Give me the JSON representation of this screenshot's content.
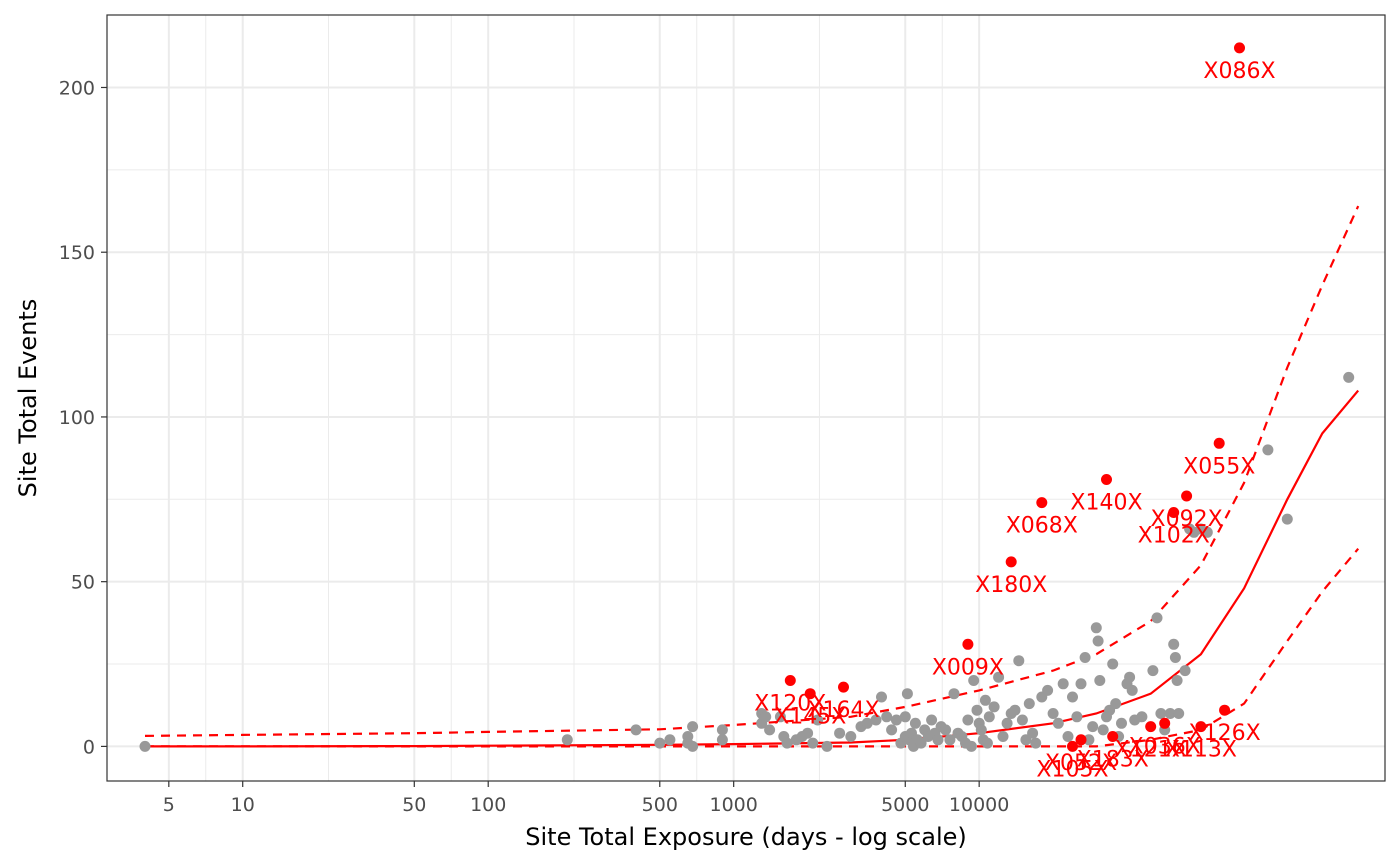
{
  "chart_data": {
    "type": "scatter",
    "title": "",
    "xlabel": "Site Total Exposure (days - log scale)",
    "ylabel": "Site Total Events",
    "x_scale": "log10",
    "xlim": [
      2.8,
      450000
    ],
    "ylim": [
      -10.5,
      222
    ],
    "x_ticks": [
      5,
      10,
      50,
      100,
      500,
      1000,
      5000,
      10000
    ],
    "x_tick_labels": [
      "5",
      "10",
      "50",
      "100",
      "500",
      "1000",
      "5000",
      "10000"
    ],
    "y_ticks": [
      0,
      50,
      100,
      150,
      200
    ],
    "y_tick_labels": [
      "0",
      "50",
      "100",
      "150",
      "200"
    ],
    "grid": true,
    "legend": "none",
    "colors": {
      "normal": "#999999",
      "flagged": "#ff0000",
      "fit": "#ff0000",
      "panel_border": "#333333",
      "grid": "#ebebeb"
    },
    "fit": {
      "exposure": [
        4,
        10,
        50,
        100,
        500,
        1000,
        3000,
        5000,
        10000,
        20000,
        30000,
        50000,
        80000,
        120000,
        180000,
        250000,
        350000
      ],
      "expected": [
        0,
        0,
        0.1,
        0.2,
        0.5,
        0.7,
        1.2,
        2,
        4,
        7,
        10,
        16,
        28,
        48,
        75,
        95,
        108
      ],
      "upper": [
        3.2,
        3.5,
        4,
        4.4,
        5.2,
        6.5,
        9,
        12,
        17,
        23,
        28,
        38,
        55,
        80,
        115,
        140,
        164
      ],
      "lower": [
        0,
        0,
        0,
        0,
        0,
        0,
        0,
        0,
        0,
        0,
        0,
        2,
        5,
        13,
        32,
        47,
        60
      ]
    },
    "series": [
      {
        "name": "",
        "color": "#999999",
        "points": [
          [
            4,
            0
          ],
          [
            210,
            2
          ],
          [
            400,
            5
          ],
          [
            500,
            1
          ],
          [
            550,
            2
          ],
          [
            650,
            3
          ],
          [
            650,
            1
          ],
          [
            680,
            0
          ],
          [
            680,
            6
          ],
          [
            900,
            5
          ],
          [
            900,
            2
          ],
          [
            1300,
            10
          ],
          [
            1300,
            7
          ],
          [
            1350,
            9
          ],
          [
            1400,
            5
          ],
          [
            1550,
            9
          ],
          [
            1600,
            3
          ],
          [
            1650,
            1
          ],
          [
            1800,
            2
          ],
          [
            1900,
            3
          ],
          [
            2000,
            4
          ],
          [
            2100,
            1
          ],
          [
            2200,
            8
          ],
          [
            2400,
            0
          ],
          [
            2700,
            4
          ],
          [
            3000,
            3
          ],
          [
            3300,
            6
          ],
          [
            3500,
            7
          ],
          [
            3800,
            8
          ],
          [
            4000,
            15
          ],
          [
            4200,
            9
          ],
          [
            4400,
            5
          ],
          [
            4600,
            8
          ],
          [
            4800,
            1
          ],
          [
            5000,
            3
          ],
          [
            5000,
            9
          ],
          [
            5100,
            16
          ],
          [
            5200,
            2
          ],
          [
            5300,
            4
          ],
          [
            5400,
            0
          ],
          [
            5500,
            7
          ],
          [
            5600,
            2
          ],
          [
            5800,
            1
          ],
          [
            6000,
            5
          ],
          [
            6200,
            3
          ],
          [
            6400,
            8
          ],
          [
            6600,
            4
          ],
          [
            6800,
            2
          ],
          [
            7000,
            6
          ],
          [
            7300,
            5
          ],
          [
            7600,
            2
          ],
          [
            7900,
            16
          ],
          [
            8200,
            4
          ],
          [
            8500,
            3
          ],
          [
            8800,
            1
          ],
          [
            9000,
            8
          ],
          [
            9300,
            0
          ],
          [
            9500,
            20
          ],
          [
            9800,
            11
          ],
          [
            10000,
            7
          ],
          [
            10200,
            5
          ],
          [
            10400,
            2
          ],
          [
            10600,
            14
          ],
          [
            10800,
            1
          ],
          [
            11000,
            9
          ],
          [
            11500,
            12
          ],
          [
            12000,
            21
          ],
          [
            12500,
            3
          ],
          [
            13000,
            7
          ],
          [
            13500,
            10
          ],
          [
            14000,
            11
          ],
          [
            14500,
            26
          ],
          [
            15000,
            8
          ],
          [
            15500,
            2
          ],
          [
            16000,
            13
          ],
          [
            16500,
            4
          ],
          [
            17000,
            1
          ],
          [
            18000,
            15
          ],
          [
            19000,
            17
          ],
          [
            20000,
            10
          ],
          [
            21000,
            7
          ],
          [
            22000,
            19
          ],
          [
            23000,
            3
          ],
          [
            24000,
            15
          ],
          [
            25000,
            9
          ],
          [
            26000,
            19
          ],
          [
            27000,
            27
          ],
          [
            28000,
            2
          ],
          [
            29000,
            6
          ],
          [
            30000,
            36
          ],
          [
            30500,
            32
          ],
          [
            31000,
            20
          ],
          [
            32000,
            5
          ],
          [
            33000,
            9
          ],
          [
            34000,
            11
          ],
          [
            35000,
            25
          ],
          [
            36000,
            13
          ],
          [
            37000,
            3
          ],
          [
            38000,
            7
          ],
          [
            40000,
            19
          ],
          [
            41000,
            21
          ],
          [
            42000,
            17
          ],
          [
            43000,
            8
          ],
          [
            46000,
            9
          ],
          [
            51000,
            23
          ],
          [
            53000,
            39
          ],
          [
            55000,
            10
          ],
          [
            57000,
            5
          ],
          [
            60000,
            10
          ],
          [
            62000,
            31
          ],
          [
            63000,
            27
          ],
          [
            64000,
            20
          ],
          [
            65000,
            10
          ],
          [
            69000,
            23
          ],
          [
            72000,
            66
          ],
          [
            75000,
            65
          ],
          [
            80000,
            66
          ],
          [
            85000,
            65
          ],
          [
            150000,
            90
          ],
          [
            180000,
            69
          ],
          [
            320000,
            112
          ]
        ]
      },
      {
        "name": "",
        "color": "#ff0000",
        "points": [
          [
            1700,
            20
          ],
          [
            2050,
            16
          ],
          [
            2800,
            18
          ],
          [
            9000,
            31
          ],
          [
            13500,
            56
          ],
          [
            18000,
            74
          ],
          [
            33000,
            81
          ],
          [
            62000,
            71
          ],
          [
            70000,
            76
          ],
          [
            95000,
            92
          ],
          [
            115000,
            212
          ],
          [
            24000,
            0
          ],
          [
            26000,
            2
          ],
          [
            35000,
            3
          ],
          [
            50000,
            6
          ],
          [
            57000,
            7
          ],
          [
            80000,
            6
          ],
          [
            100000,
            11
          ]
        ]
      }
    ],
    "labels": [
      {
        "text": "X086X",
        "x": 115000,
        "y": 212
      },
      {
        "text": "X055X",
        "x": 95000,
        "y": 92
      },
      {
        "text": "X140X",
        "x": 33000,
        "y": 81
      },
      {
        "text": "X092X",
        "x": 70000,
        "y": 76
      },
      {
        "text": "X068X",
        "x": 18000,
        "y": 74
      },
      {
        "text": "X102X",
        "x": 62000,
        "y": 71
      },
      {
        "text": "X180X",
        "x": 13500,
        "y": 56
      },
      {
        "text": "X009X",
        "x": 9000,
        "y": 31
      },
      {
        "text": "X145X",
        "x": 2050,
        "y": 16
      },
      {
        "text": "X164X",
        "x": 2800,
        "y": 18
      },
      {
        "text": "X120X",
        "x": 1700,
        "y": 20
      },
      {
        "text": "X126X",
        "x": 100000,
        "y": 11
      },
      {
        "text": "X113X",
        "x": 80000,
        "y": 6
      },
      {
        "text": "X036X",
        "x": 57000,
        "y": 7
      },
      {
        "text": "X121X",
        "x": 50000,
        "y": 6
      },
      {
        "text": "X105X",
        "x": 24000,
        "y": 0
      },
      {
        "text": "X052X",
        "x": 26000,
        "y": 2
      },
      {
        "text": "X183X",
        "x": 35000,
        "y": 3
      }
    ]
  }
}
